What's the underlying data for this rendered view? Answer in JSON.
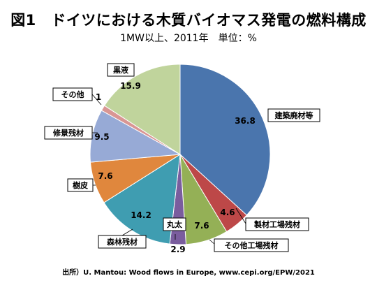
{
  "title": "図1　ドイツにおける木質バイオマス発電の燃料構成",
  "subtitle": "1MW以上、2011年　単位：%",
  "source": "出所）U. Mantou: Wood flows in Europe, www.cepi.org/EPW/2021",
  "chart_data": {
    "type": "pie",
    "unit": "%",
    "start": "12 o'clock",
    "direction": "clockwise",
    "slices": [
      {
        "label": "建築廃材等",
        "value": 36.8,
        "value_text": "36.8",
        "color": "#4a75ad"
      },
      {
        "label": "製材工場残材",
        "value": 4.6,
        "value_text": "4.6",
        "color": "#bd4848"
      },
      {
        "label": "その他工場残材",
        "value": 7.6,
        "value_text": "7.6",
        "color": "#94b056"
      },
      {
        "label": "丸太",
        "value": 2.9,
        "value_text": "2.9",
        "color": "#7a5d9e"
      },
      {
        "label": "森林残材",
        "value": 14.2,
        "value_text": "14.2",
        "color": "#3f9db1"
      },
      {
        "label": "樹皮",
        "value": 7.6,
        "value_text": "7.6",
        "color": "#e0873d"
      },
      {
        "label": "修景残材",
        "value": 9.5,
        "value_text": "9.5",
        "color": "#97aad6"
      },
      {
        "label": "その他",
        "value": 1,
        "value_text": "1",
        "color": "#d99694"
      },
      {
        "label": "黒液",
        "value": 15.9,
        "value_text": "15.9",
        "color": "#c0d49c"
      }
    ]
  }
}
